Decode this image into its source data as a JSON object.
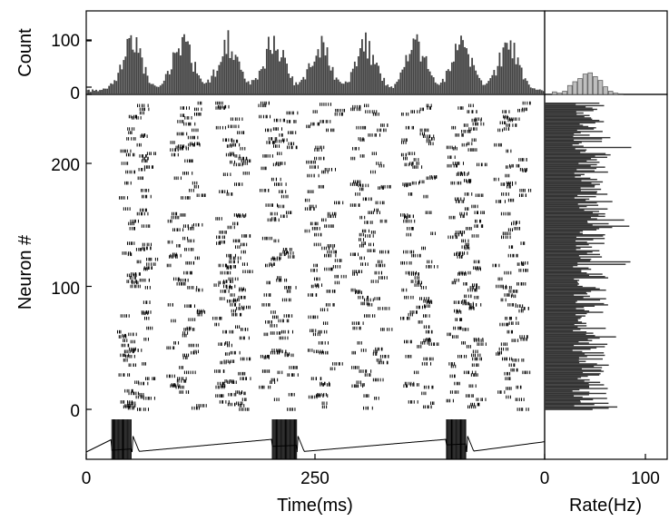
{
  "chart_data": [
    {
      "type": "bar",
      "panel": "top-histogram",
      "ylabel": "Count",
      "xlim": [
        0,
        500
      ],
      "ylim": [
        0,
        150
      ],
      "yticks": [
        "0",
        "100"
      ],
      "bursts": [
        {
          "center": 50,
          "peak": 105
        },
        {
          "center": 105,
          "peak": 110
        },
        {
          "center": 155,
          "peak": 108
        },
        {
          "center": 205,
          "peak": 110
        },
        {
          "center": 255,
          "peak": 95
        },
        {
          "center": 305,
          "peak": 98
        },
        {
          "center": 360,
          "peak": 103
        },
        {
          "center": 410,
          "peak": 107
        },
        {
          "center": 460,
          "peak": 98
        }
      ],
      "colors": {
        "bars": "#444444"
      }
    },
    {
      "type": "scatter",
      "panel": "raster",
      "ylabel": "Neuron #",
      "xlabel": "Time(ms)",
      "xlim": [
        0,
        500
      ],
      "ylim": [
        -5,
        250
      ],
      "yticks": [
        "0",
        "100",
        "200"
      ],
      "xticks": [
        "0",
        "250"
      ],
      "n_neurons": 250,
      "burst_times": [
        50,
        105,
        155,
        205,
        255,
        305,
        360,
        410,
        460
      ]
    },
    {
      "type": "line",
      "panel": "voltage-trace",
      "bursts": [
        {
          "start": 28,
          "end": 50
        },
        {
          "start": 203,
          "end": 230
        },
        {
          "start": 393,
          "end": 415
        }
      ]
    },
    {
      "type": "bar",
      "panel": "rate-histogram-top-right",
      "xlim": [
        0,
        120
      ],
      "bins": [
        {
          "x": 10,
          "count": 4
        },
        {
          "x": 15,
          "count": 2
        },
        {
          "x": 20,
          "count": 5
        },
        {
          "x": 25,
          "count": 14
        },
        {
          "x": 30,
          "count": 20
        },
        {
          "x": 35,
          "count": 25
        },
        {
          "x": 40,
          "count": 32
        },
        {
          "x": 45,
          "count": 34
        },
        {
          "x": 50,
          "count": 28
        },
        {
          "x": 55,
          "count": 22
        },
        {
          "x": 60,
          "count": 12
        },
        {
          "x": 65,
          "count": 5
        },
        {
          "x": 70,
          "count": 2
        },
        {
          "x": 75,
          "count": 1
        }
      ],
      "colors": {
        "bars": "#bfbfbf"
      }
    },
    {
      "type": "bar",
      "panel": "rate-per-neuron",
      "xlabel": "Rate(Hz)",
      "xlim": [
        0,
        120
      ],
      "xticks": [
        "0",
        "100"
      ],
      "mean_rate": 45,
      "colors": {
        "bars": "#333333"
      }
    }
  ]
}
